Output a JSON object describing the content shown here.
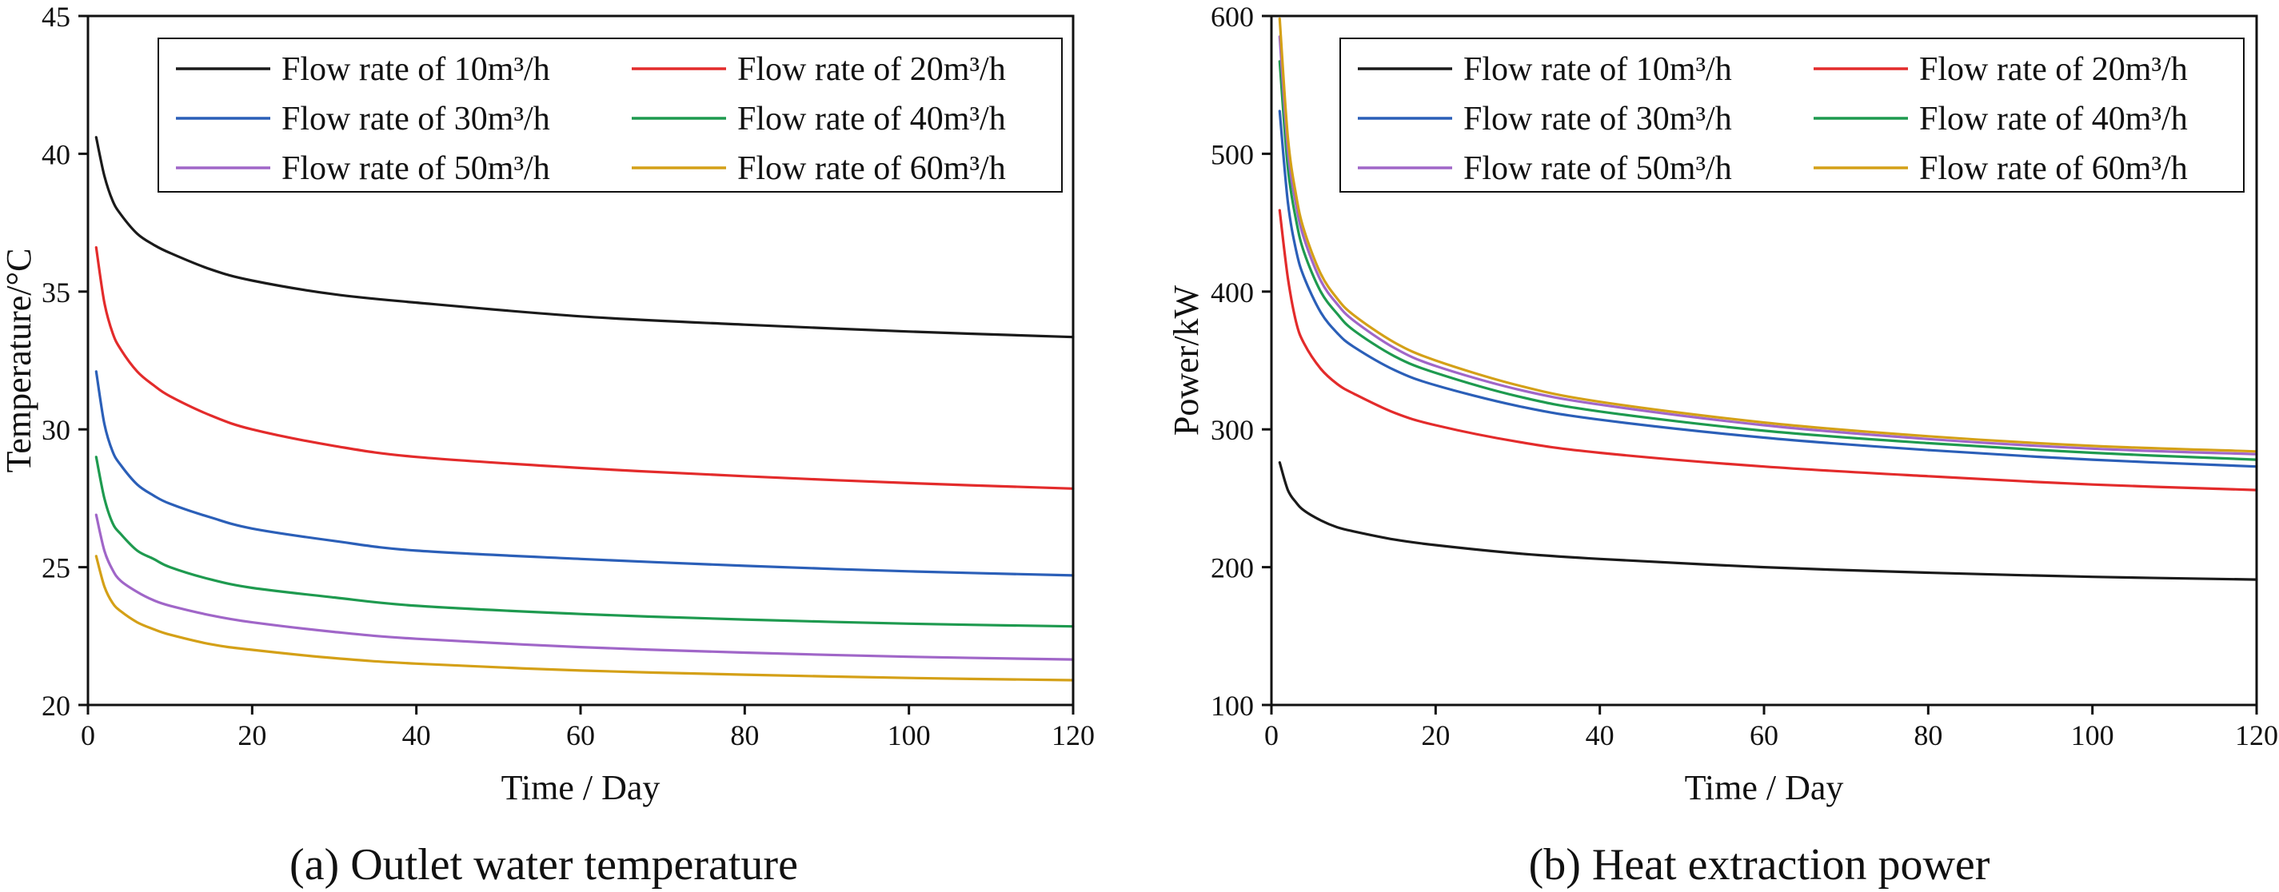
{
  "chart_data": [
    {
      "type": "line",
      "caption": "(a) Outlet water temperature",
      "xlabel": "Time / Day",
      "ylabel": "Temperature/°C",
      "xlim": [
        0,
        120
      ],
      "ylim": [
        20,
        45
      ],
      "xticks": [
        0,
        20,
        40,
        60,
        80,
        100,
        120
      ],
      "yticks": [
        20,
        25,
        30,
        35,
        40,
        45
      ],
      "legend_position": "top-right",
      "x": [
        1,
        2,
        3,
        4,
        6,
        8,
        10,
        15,
        20,
        30,
        40,
        60,
        80,
        100,
        120
      ],
      "series": [
        {
          "name": "Flow rate of 10m³/h",
          "color": "#1a1a1a",
          "values": [
            40.6,
            39.2,
            38.3,
            37.8,
            37.1,
            36.7,
            36.4,
            35.8,
            35.4,
            34.9,
            34.6,
            34.1,
            33.8,
            33.55,
            33.35
          ]
        },
        {
          "name": "Flow rate of 20m³/h",
          "color": "#e32b2b",
          "values": [
            36.6,
            34.6,
            33.5,
            32.9,
            32.1,
            31.6,
            31.2,
            30.5,
            30.0,
            29.4,
            29.0,
            28.6,
            28.3,
            28.05,
            27.85
          ]
        },
        {
          "name": "Flow rate of 30m³/h",
          "color": "#2b5fb8",
          "values": [
            32.1,
            30.2,
            29.2,
            28.7,
            28.0,
            27.6,
            27.3,
            26.8,
            26.4,
            25.95,
            25.6,
            25.3,
            25.05,
            24.85,
            24.7
          ]
        },
        {
          "name": "Flow rate of 40m³/h",
          "color": "#1e9a4f",
          "values": [
            29.0,
            27.5,
            26.6,
            26.2,
            25.6,
            25.3,
            25.0,
            24.55,
            24.25,
            23.9,
            23.6,
            23.3,
            23.1,
            22.95,
            22.85
          ]
        },
        {
          "name": "Flow rate of 50m³/h",
          "color": "#a066c8",
          "values": [
            26.9,
            25.6,
            24.9,
            24.5,
            24.1,
            23.8,
            23.6,
            23.25,
            23.0,
            22.65,
            22.4,
            22.1,
            21.9,
            21.75,
            21.65
          ]
        },
        {
          "name": "Flow rate of 60m³/h",
          "color": "#d4a017",
          "values": [
            25.4,
            24.3,
            23.7,
            23.4,
            23.0,
            22.75,
            22.55,
            22.2,
            22.0,
            21.7,
            21.5,
            21.25,
            21.1,
            20.98,
            20.9
          ]
        }
      ]
    },
    {
      "type": "line",
      "caption": "(b) Heat extraction power",
      "xlabel": "Time / Day",
      "ylabel": "Power/kW",
      "xlim": [
        0,
        120
      ],
      "ylim": [
        100,
        600
      ],
      "xticks": [
        0,
        20,
        40,
        60,
        80,
        100,
        120
      ],
      "yticks": [
        100,
        200,
        300,
        400,
        500,
        600
      ],
      "legend_position": "top-right",
      "x": [
        1,
        2,
        3,
        4,
        6,
        8,
        10,
        15,
        20,
        30,
        40,
        60,
        80,
        100,
        120
      ],
      "series": [
        {
          "name": "Flow rate of 10m³/h",
          "color": "#1a1a1a",
          "values": [
            276,
            256,
            247,
            241,
            234,
            229,
            226,
            220,
            216,
            210,
            206,
            200,
            196,
            193,
            191
          ]
        },
        {
          "name": "Flow rate of 20m³/h",
          "color": "#e32b2b",
          "values": [
            459,
            410,
            378,
            362,
            344,
            333,
            326,
            312,
            303,
            291,
            283,
            273,
            266,
            260,
            256
          ]
        },
        {
          "name": "Flow rate of 30m³/h",
          "color": "#2b5fb8",
          "values": [
            531,
            465,
            430,
            410,
            385,
            370,
            360,
            343,
            332,
            317,
            307,
            294,
            285,
            278,
            273
          ]
        },
        {
          "name": "Flow rate of 40m³/h",
          "color": "#1e9a4f",
          "values": [
            567,
            490,
            452,
            428,
            400,
            384,
            372,
            353,
            341,
            324,
            313,
            299,
            290,
            283,
            278
          ]
        },
        {
          "name": "Flow rate of 50m³/h",
          "color": "#a066c8",
          "values": [
            585,
            503,
            463,
            438,
            408,
            391,
            379,
            359,
            346,
            329,
            318,
            303,
            293,
            286,
            282
          ]
        },
        {
          "name": "Flow rate of 60m³/h",
          "color": "#d4a017",
          "values": [
            598,
            512,
            470,
            444,
            413,
            395,
            383,
            363,
            350,
            332,
            320,
            305,
            295,
            288,
            284
          ]
        }
      ]
    }
  ]
}
